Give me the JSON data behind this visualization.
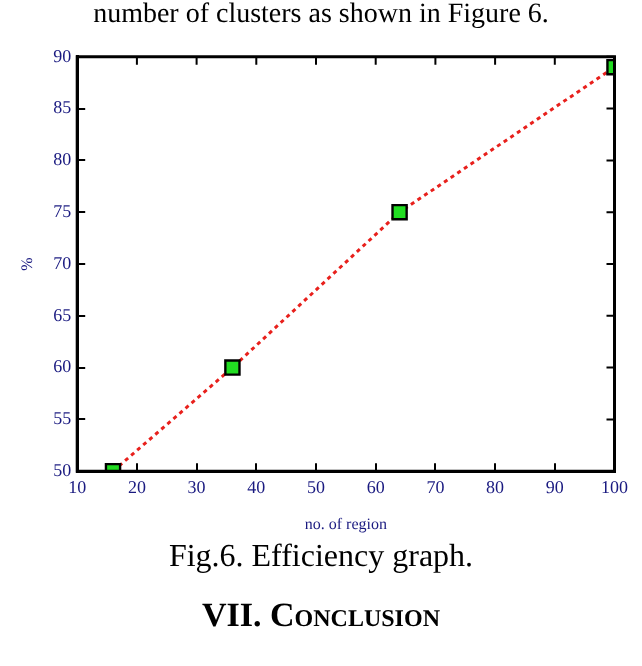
{
  "chart_data": {
    "type": "line",
    "xlabel": "no. of region",
    "ylabel": "%",
    "x": [
      16,
      36,
      64,
      100
    ],
    "series": [
      {
        "color": "#e8201c",
        "values": [
          50,
          60,
          75,
          89
        ]
      }
    ],
    "xlim": [
      10,
      100
    ],
    "xticks": [
      10,
      20,
      30,
      40,
      50,
      60,
      70,
      80,
      90,
      100
    ],
    "ylim": [
      50,
      90
    ],
    "yticks": [
      50,
      55,
      60,
      65,
      70,
      75,
      80,
      85,
      90
    ],
    "grid": false,
    "legend": false,
    "marker": "square",
    "line_style": "dotted",
    "annotations": [
      "number of clusters as shown in Figure 6.",
      "Fig.6. Efficiency graph.",
      "VII. Conclusion"
    ]
  }
}
